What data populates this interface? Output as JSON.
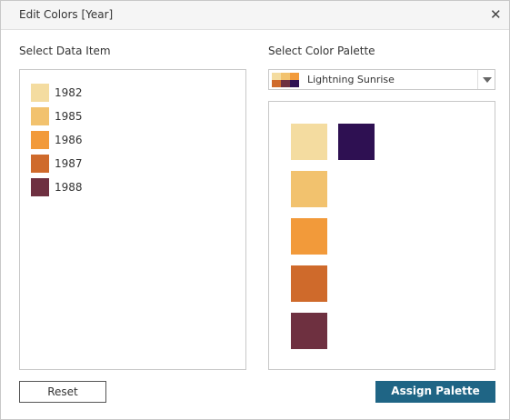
{
  "dialog": {
    "title": "Edit Colors [Year]",
    "close": "✕"
  },
  "data_items": {
    "label": "Select Data Item",
    "items": [
      {
        "name": "1982",
        "color": "#f4dca0"
      },
      {
        "name": "1985",
        "color": "#f2c26e"
      },
      {
        "name": "1986",
        "color": "#f29a3a"
      },
      {
        "name": "1987",
        "color": "#cf6a2b"
      },
      {
        "name": "1988",
        "color": "#6e3040"
      }
    ]
  },
  "palette": {
    "label": "Select Color Palette",
    "name": "Lightning Sunrise",
    "columns": [
      [
        "#f4dca0",
        "#f2c26e",
        "#f29a3a",
        "#cf6a2b",
        "#6e3040"
      ],
      [
        "#2e1052"
      ]
    ]
  },
  "buttons": {
    "reset": "Reset",
    "assign": "Assign Palette"
  }
}
